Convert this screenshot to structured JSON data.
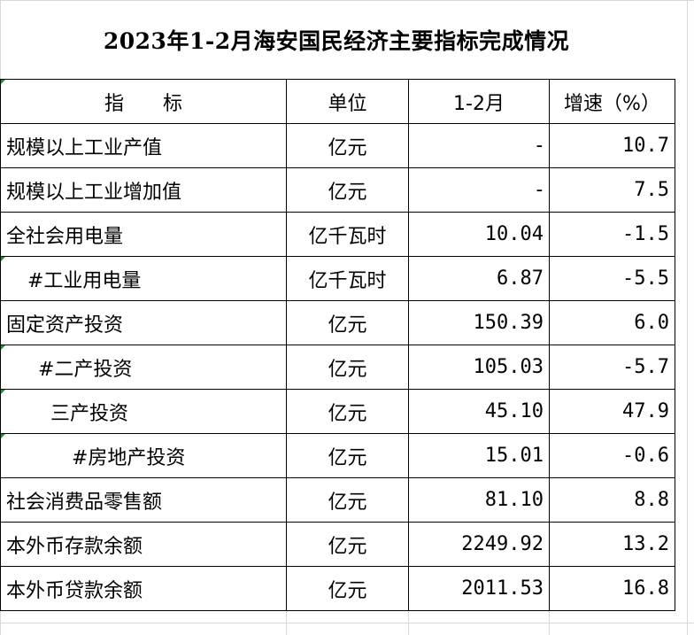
{
  "title": "2023年1-2月海安国民经济主要指标完成情况",
  "headers": {
    "indicator": "指　　标",
    "unit": "单位",
    "period": "1-2月",
    "growth": "增速（%）"
  },
  "rows": [
    {
      "name": "规模以上工业产值",
      "unit": "亿元",
      "value": "-",
      "growth": "10.7"
    },
    {
      "name": "规模以上工业增加值",
      "unit": "亿元",
      "value": "-",
      "growth": "7.5"
    },
    {
      "name": "全社会用电量",
      "unit": "亿千瓦时",
      "value": "10.04",
      "growth": "-1.5"
    },
    {
      "name": "#工业用电量",
      "unit": "亿千瓦时",
      "value": "6.87",
      "growth": "-5.5"
    },
    {
      "name": "固定资产投资",
      "unit": "亿元",
      "value": "150.39",
      "growth": "6.0"
    },
    {
      "name": "#二产投资",
      "unit": "亿元",
      "value": "105.03",
      "growth": "-5.7"
    },
    {
      "name": "三产投资",
      "unit": "亿元",
      "value": "45.10",
      "growth": "47.9"
    },
    {
      "name": "#房地产投资",
      "unit": "亿元",
      "value": "15.01",
      "growth": "-0.6"
    },
    {
      "name": "社会消费品零售额",
      "unit": "亿元",
      "value": "81.10",
      "growth": "8.8"
    },
    {
      "name": "本外币存款余额",
      "unit": "亿元",
      "value": "2249.92",
      "growth": "13.2"
    },
    {
      "name": "本外币贷款余额",
      "unit": "亿元",
      "value": "2011.53",
      "growth": "16.8"
    }
  ]
}
